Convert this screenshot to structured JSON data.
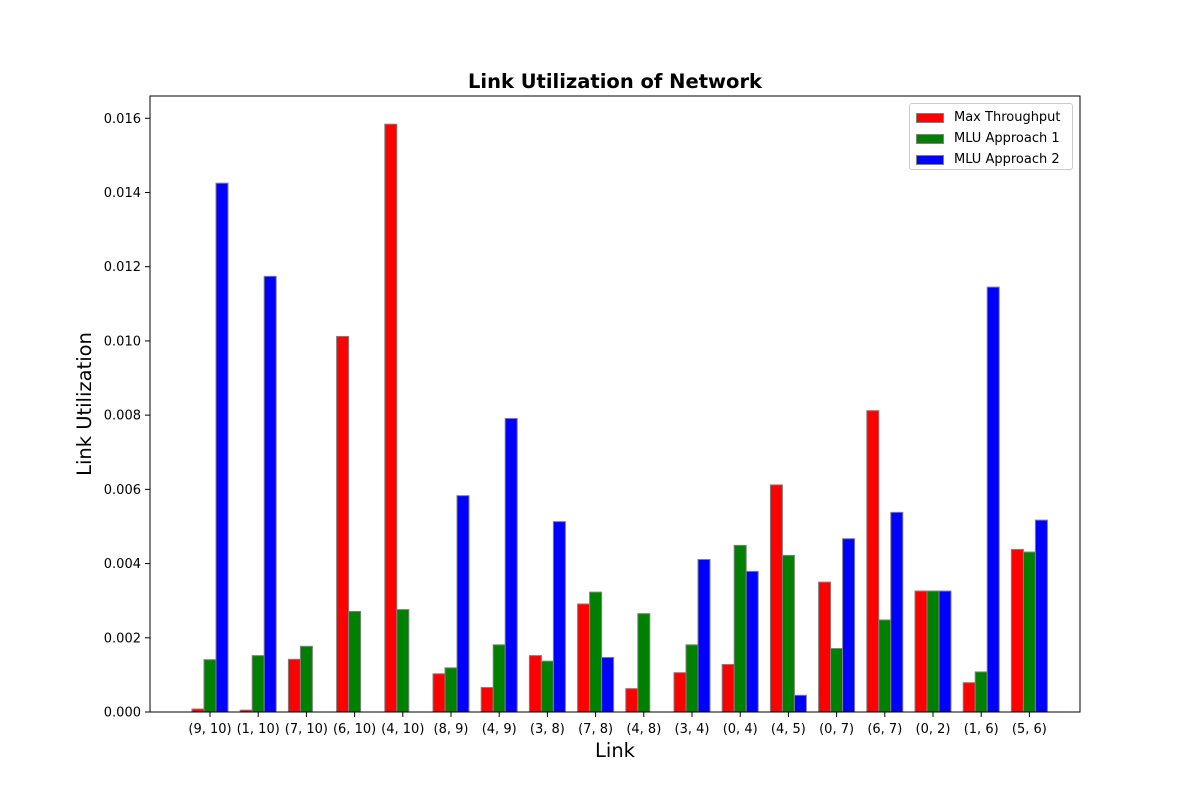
{
  "chart_data": {
    "type": "bar",
    "title": "Link Utilization of Network",
    "xlabel": "Link",
    "ylabel": "Link Utilization",
    "ylim": [
      0,
      0.0166
    ],
    "yticks": [
      "0.000",
      "0.002",
      "0.004",
      "0.006",
      "0.008",
      "0.010",
      "0.012",
      "0.014",
      "0.016"
    ],
    "grid": false,
    "legend_position": "top-right",
    "categories": [
      "(9, 10)",
      "(1, 10)",
      "(7, 10)",
      "(6, 10)",
      "(4, 10)",
      "(8, 9)",
      "(4, 9)",
      "(3, 8)",
      "(7, 8)",
      "(4, 8)",
      "(3, 4)",
      "(0, 4)",
      "(4, 5)",
      "(0, 7)",
      "(6, 7)",
      "(0, 2)",
      "(1, 6)",
      "(5, 6)"
    ],
    "series": [
      {
        "name": "Max Throughput",
        "color": "#ff0000",
        "values": [
          8e-05,
          5e-05,
          0.00142,
          0.01012,
          0.01584,
          0.00103,
          0.00066,
          0.00152,
          0.00291,
          0.00063,
          0.00106,
          0.00128,
          0.00612,
          0.0035,
          0.00812,
          0.00326,
          0.00079,
          0.00438
        ]
      },
      {
        "name": "MLU Approach 1",
        "color": "#008000",
        "values": [
          0.00141,
          0.00152,
          0.00177,
          0.00271,
          0.00276,
          0.00119,
          0.00181,
          0.00137,
          0.00323,
          0.00265,
          0.00181,
          0.00449,
          0.00422,
          0.00171,
          0.00248,
          0.00326,
          0.00108,
          0.00431
        ]
      },
      {
        "name": "MLU Approach 2",
        "color": "#0000ff",
        "values": [
          0.01425,
          0.01174,
          0,
          0,
          0,
          0.00583,
          0.00791,
          0.00513,
          0.00147,
          0,
          0.00411,
          0.00379,
          0.00045,
          0.00467,
          0.00538,
          0.00326,
          0.01145,
          0.00517
        ]
      }
    ]
  }
}
